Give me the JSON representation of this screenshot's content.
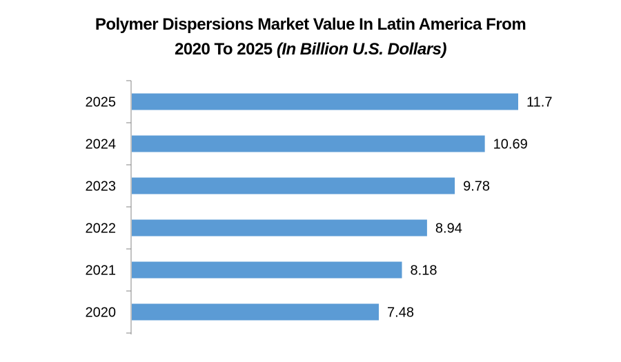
{
  "chart_data": {
    "type": "bar",
    "orientation": "horizontal",
    "title": "Polymer Dispersions Market Value In Latin America From 2020 To 2025",
    "title_line1": "Polymer Dispersions Market Value In Latin America From",
    "title_line2": "2020 To 2025",
    "title_units": "(In Billion U.S. Dollars)",
    "categories": [
      "2020",
      "2021",
      "2022",
      "2023",
      "2024",
      "2025"
    ],
    "values": [
      7.48,
      8.18,
      8.94,
      9.78,
      10.69,
      11.7
    ],
    "value_labels": [
      "7.48",
      "8.18",
      "8.94",
      "9.78",
      "10.69",
      "11.7"
    ],
    "xlim": [
      0,
      11.7
    ],
    "xlabel": "",
    "ylabel": "",
    "grid": false,
    "legend": "none",
    "colors": {
      "bar": "#5B9BD5",
      "axis": "#868686",
      "text": "#000000"
    }
  }
}
